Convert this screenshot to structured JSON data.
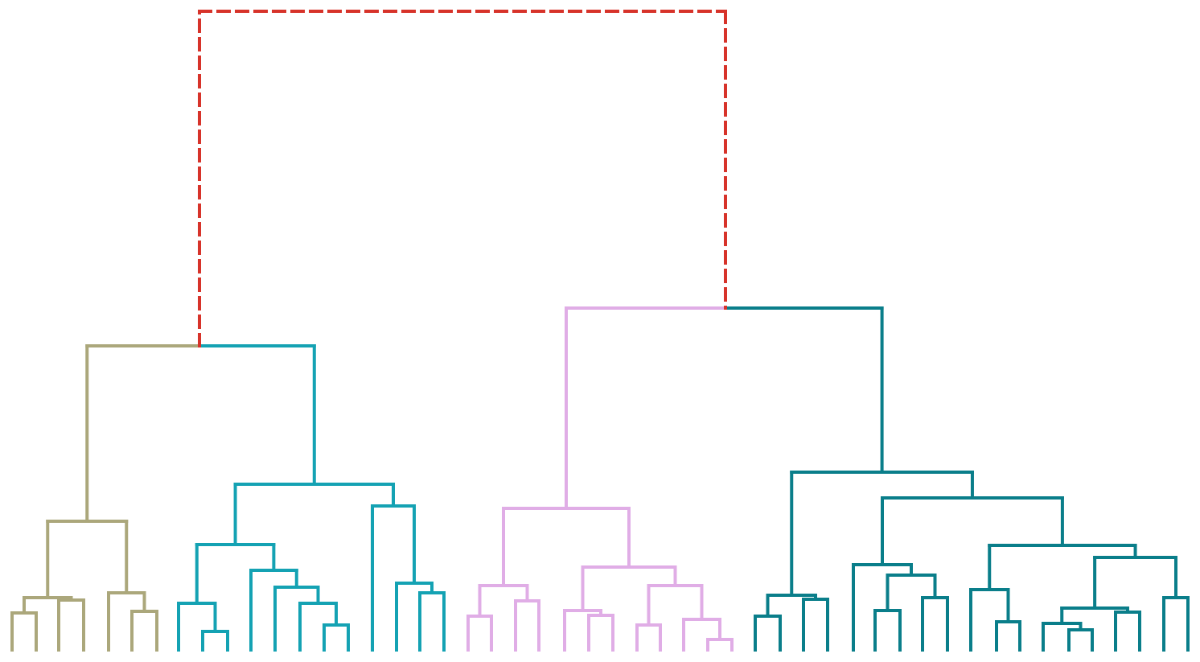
{
  "diagram": {
    "type": "dendrogram",
    "orientation": "top-down",
    "root_link_style": "dashed",
    "colors": {
      "root": "#D7332A",
      "cluster_1": "#ABA77B",
      "cluster_2": "#14A2B3",
      "cluster_3": "#E0ADE6",
      "cluster_4": "#0A7E8A"
    },
    "clusters": [
      {
        "id": "cluster_1",
        "leaf_count": 7
      },
      {
        "id": "cluster_2",
        "leaf_count": 12
      },
      {
        "id": "cluster_3",
        "leaf_count": 12
      },
      {
        "id": "cluster_4",
        "leaf_count": 19
      }
    ]
  }
}
